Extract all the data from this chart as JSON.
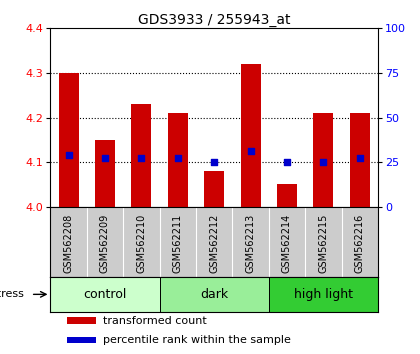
{
  "title": "GDS3933 / 255943_at",
  "samples": [
    "GSM562208",
    "GSM562209",
    "GSM562210",
    "GSM562211",
    "GSM562212",
    "GSM562213",
    "GSM562214",
    "GSM562215",
    "GSM562216"
  ],
  "bar_bottoms": [
    4.0,
    4.0,
    4.0,
    4.0,
    4.0,
    4.0,
    4.0,
    4.0,
    4.0
  ],
  "bar_tops": [
    4.3,
    4.15,
    4.23,
    4.21,
    4.08,
    4.32,
    4.05,
    4.21,
    4.21
  ],
  "blue_dots": [
    4.115,
    4.11,
    4.11,
    4.11,
    4.1,
    4.125,
    4.1,
    4.1,
    4.11
  ],
  "ylim": [
    4.0,
    4.4
  ],
  "yticks": [
    4.0,
    4.1,
    4.2,
    4.3,
    4.4
  ],
  "right_yticks": [
    0,
    25,
    50,
    75,
    100
  ],
  "bar_color": "#cc0000",
  "dot_color": "#0000cc",
  "groups": [
    {
      "label": "control",
      "start": 0,
      "end": 3,
      "color": "#ccffcc"
    },
    {
      "label": "dark",
      "start": 3,
      "end": 6,
      "color": "#99ee99"
    },
    {
      "label": "high light",
      "start": 6,
      "end": 9,
      "color": "#33cc33"
    }
  ],
  "stress_label": "stress",
  "legend_items": [
    {
      "color": "#cc0000",
      "label": "transformed count"
    },
    {
      "color": "#0000cc",
      "label": "percentile rank within the sample"
    }
  ],
  "sample_bg": "#cccccc",
  "sample_border": "#888888",
  "title_fontsize": 10,
  "axis_fontsize": 8,
  "sample_fontsize": 7,
  "group_fontsize": 9,
  "legend_fontsize": 8
}
